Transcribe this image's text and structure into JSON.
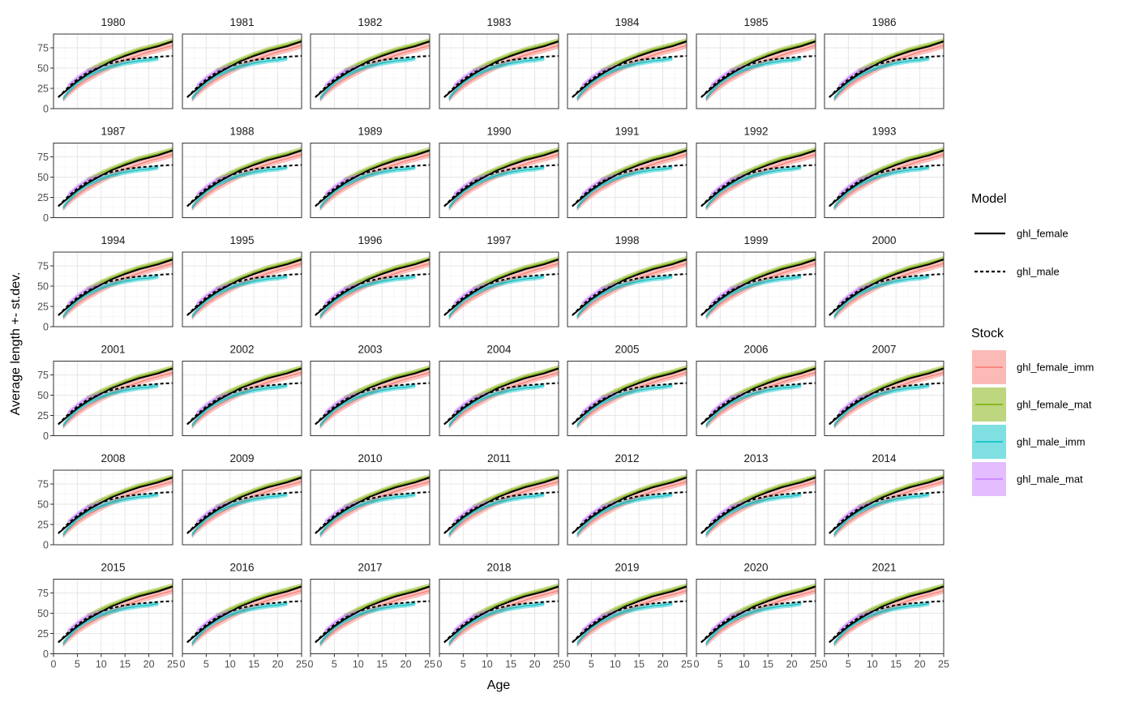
{
  "chart_data": {
    "type": "line",
    "facet": "year",
    "panels": [
      "1980",
      "1981",
      "1982",
      "1983",
      "1984",
      "1985",
      "1986",
      "1987",
      "1988",
      "1989",
      "1990",
      "1991",
      "1992",
      "1993",
      "1994",
      "1995",
      "1996",
      "1997",
      "1998",
      "1999",
      "2000",
      "2001",
      "2002",
      "2003",
      "2004",
      "2005",
      "2006",
      "2007",
      "2008",
      "2009",
      "2010",
      "2011",
      "2012",
      "2013",
      "2014",
      "2015",
      "2016",
      "2017",
      "2018",
      "2019",
      "2020",
      "2021"
    ],
    "ncol": 7,
    "xlabel": "Age",
    "ylabel": "Average length +- st.dev.",
    "xlim": [
      0,
      25
    ],
    "ylim": [
      0,
      92
    ],
    "x_ticks": [
      "0",
      "5",
      "10",
      "15",
      "20",
      "25"
    ],
    "y_ticks": [
      "0",
      "25",
      "50",
      "75"
    ],
    "x_tick_values": [
      0,
      5,
      10,
      15,
      20,
      25
    ],
    "y_tick_values": [
      0,
      25,
      50,
      75
    ],
    "grid": true,
    "legend_placement": "right",
    "model_legend": {
      "title": "Model",
      "entries": [
        {
          "label": "ghl_female",
          "linetype": "solid",
          "color": "#000000"
        },
        {
          "label": "ghl_male",
          "linetype": "dashed",
          "color": "#000000"
        }
      ]
    },
    "stock_legend": {
      "title": "Stock",
      "entries": [
        {
          "label": "ghl_female_imm",
          "color": "#F8766D"
        },
        {
          "label": "ghl_female_mat",
          "color": "#7CAE00"
        },
        {
          "label": "ghl_male_imm",
          "color": "#00BFC4"
        },
        {
          "label": "ghl_male_mat",
          "color": "#C77CFF"
        }
      ]
    },
    "model_series": [
      {
        "name": "ghl_female",
        "x": [
          1,
          2,
          3,
          5,
          7,
          10,
          12,
          15,
          18,
          20,
          22,
          25
        ],
        "y": [
          14,
          19,
          24,
          34,
          42,
          52,
          58,
          65,
          71,
          74,
          77,
          83
        ]
      },
      {
        "name": "ghl_male",
        "x": [
          1,
          2,
          3,
          5,
          7,
          10,
          12,
          15,
          18,
          20,
          22,
          25
        ],
        "y": [
          14,
          20,
          26,
          36,
          44,
          52,
          56,
          60,
          62,
          63,
          64,
          65
        ]
      }
    ],
    "stock_series": [
      {
        "name": "ghl_female_imm",
        "x": [
          2,
          3,
          5,
          7,
          10,
          12,
          15,
          18,
          20,
          22,
          25
        ],
        "y": [
          12,
          18,
          28,
          36,
          46,
          52,
          60,
          66,
          70,
          73,
          78
        ],
        "sd": 4
      },
      {
        "name": "ghl_female_mat",
        "x": [
          7,
          10,
          12,
          15,
          18,
          20,
          22,
          25
        ],
        "y": [
          46,
          55,
          60,
          67,
          73,
          76,
          79,
          84
        ],
        "sd": 3
      },
      {
        "name": "ghl_male_imm",
        "x": [
          2,
          3,
          5,
          7,
          10,
          12,
          15,
          18,
          20,
          22
        ],
        "y": [
          12,
          20,
          32,
          40,
          48,
          52,
          56,
          59,
          60,
          62
        ],
        "sd": 3
      },
      {
        "name": "ghl_male_mat",
        "x": [
          3,
          5,
          7,
          10
        ],
        "y": [
          28,
          38,
          46,
          52
        ],
        "sd": 3
      }
    ]
  }
}
